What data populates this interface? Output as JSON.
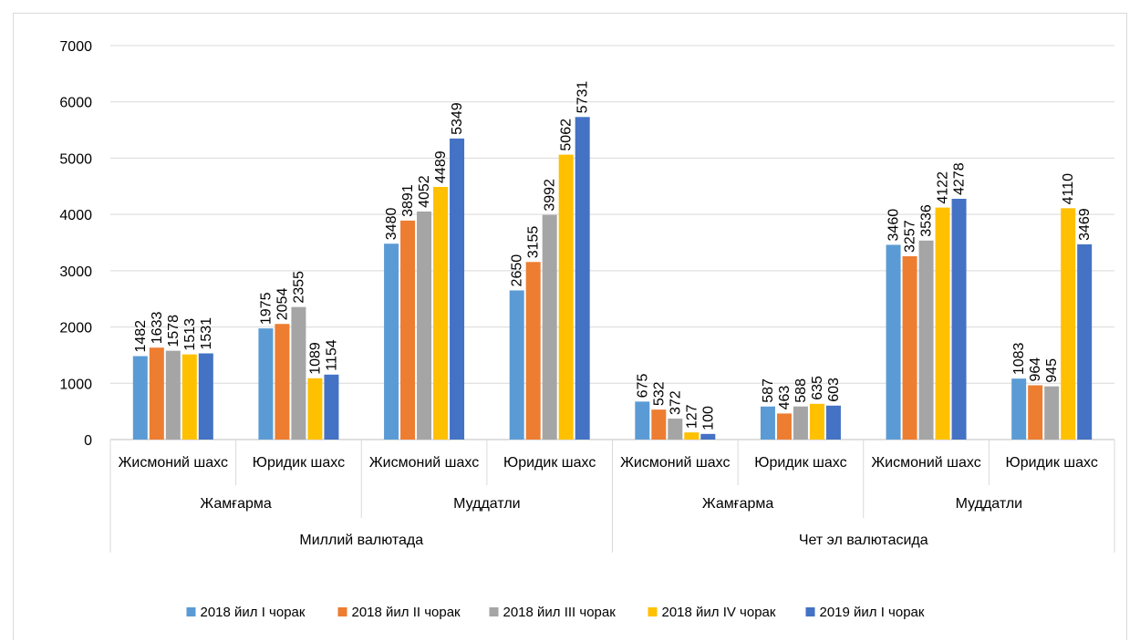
{
  "chart_data": {
    "type": "bar",
    "title": "",
    "xlabel": "",
    "ylabel": "",
    "ylim": [
      0,
      7000
    ],
    "yticks": [
      0,
      1000,
      2000,
      3000,
      4000,
      5000,
      6000,
      7000
    ],
    "grid": true,
    "legend_position": "bottom",
    "categories": [
      {
        "label": "Жисмоний шахс",
        "group": "Жамғарма",
        "supergroup": "Миллий валютада"
      },
      {
        "label": "Юридик шахс",
        "group": "Жамғарма",
        "supergroup": "Миллий валютада"
      },
      {
        "label": "Жисмоний шахс",
        "group": "Муддатли",
        "supergroup": "Миллий валютада"
      },
      {
        "label": "Юридик шахс",
        "group": "Муддатли",
        "supergroup": "Миллий валютада"
      },
      {
        "label": "Жисмоний шахс",
        "group": "Жамғарма",
        "supergroup": "Чет эл валютасида"
      },
      {
        "label": "Юридик шахс",
        "group": "Жамғарма",
        "supergroup": "Чет эл валютасида"
      },
      {
        "label": "Жисмоний шахс",
        "group": "Муддатли",
        "supergroup": "Чет эл валютасида"
      },
      {
        "label": "Юридик шахс",
        "group": "Муддатли",
        "supergroup": "Чет эл валютасида"
      }
    ],
    "groups": [
      "Жамғарма",
      "Муддатли",
      "Жамғарма",
      "Муддатли"
    ],
    "supergroups": [
      "Миллий валютада",
      "Чет эл валютасида"
    ],
    "series": [
      {
        "name": "2018 йил I чорак",
        "color": "#5b9bd5",
        "values": [
          1482,
          1975,
          3480,
          2650,
          675,
          587,
          3460,
          1083
        ]
      },
      {
        "name": "2018 йил II чорак",
        "color": "#ed7d31",
        "values": [
          1633,
          2054,
          3891,
          3155,
          532,
          463,
          3257,
          964
        ]
      },
      {
        "name": "2018 йил III чорак",
        "color": "#a5a5a5",
        "values": [
          1578,
          2355,
          4052,
          3992,
          372,
          588,
          3536,
          945
        ]
      },
      {
        "name": "2018 йил IV чорак",
        "color": "#ffc000",
        "values": [
          1513,
          1089,
          4489,
          5062,
          127,
          635,
          4122,
          4110
        ]
      },
      {
        "name": "2019 йил I чорак",
        "color": "#4472c4",
        "values": [
          1531,
          1154,
          5349,
          5731,
          100,
          603,
          4278,
          3469
        ]
      }
    ]
  }
}
